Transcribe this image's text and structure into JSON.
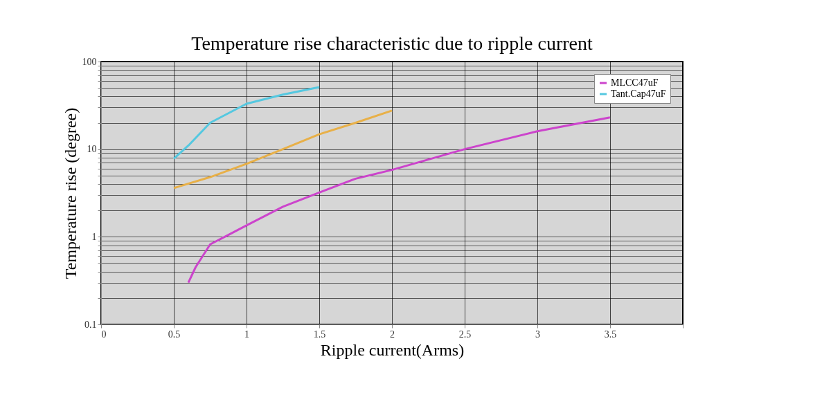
{
  "chart_data": {
    "type": "line",
    "title": "Temperature rise characteristic due to ripple current",
    "xlabel": "Ripple current(Arms)",
    "ylabel": "Temperature rise (degree)",
    "log": "y",
    "grid": true,
    "legend": "top right",
    "marker": "none",
    "line_style": "solid",
    "xlim": [
      0,
      4
    ],
    "xticks": [
      0,
      0.5,
      1,
      1.5,
      2,
      2.5,
      3,
      3.5,
      {
        "value": 4,
        "label": null
      }
    ],
    "ylim": [
      0.1,
      100
    ],
    "yticks": [
      0.1,
      {
        "value": 0.2,
        "label": null
      },
      {
        "value": 0.3,
        "label": null
      },
      {
        "value": 0.4,
        "label": null
      },
      {
        "value": 0.5,
        "label": null
      },
      {
        "value": 0.6,
        "label": null
      },
      {
        "value": 0.7,
        "label": null
      },
      {
        "value": 0.8,
        "label": null
      },
      {
        "value": 0.9,
        "label": null
      },
      1,
      {
        "value": 2,
        "label": null
      },
      {
        "value": 3,
        "label": null
      },
      {
        "value": 4,
        "label": null
      },
      {
        "value": 5,
        "label": null
      },
      {
        "value": 6,
        "label": null
      },
      {
        "value": 7,
        "label": null
      },
      {
        "value": 8,
        "label": null
      },
      {
        "value": 9,
        "label": null
      },
      10,
      {
        "value": 20,
        "label": null
      },
      {
        "value": 30,
        "label": null
      },
      {
        "value": 40,
        "label": null
      },
      {
        "value": 50,
        "label": null
      },
      {
        "value": 60,
        "label": null
      },
      {
        "value": 70,
        "label": null
      },
      {
        "value": 80,
        "label": null
      },
      {
        "value": 90,
        "label": null
      },
      100
    ],
    "series": [
      {
        "name": "MLCC47uF",
        "color": "#cc44cc",
        "x": [
          0.6,
          0.65,
          0.75,
          0.85,
          1,
          1.25,
          1.5,
          1.75,
          2,
          2.5,
          3,
          3.5
        ],
        "values": [
          0.3,
          0.45,
          0.82,
          1.0,
          1.35,
          2.2,
          3.2,
          4.6,
          5.8,
          10,
          16,
          23
        ]
      },
      {
        "name": "Tant.Cap47uF",
        "color": "#55c8e0",
        "x": [
          0.5,
          0.6,
          0.75,
          0.9,
          1,
          1.25,
          1.5
        ],
        "values": [
          7.8,
          11,
          20,
          27,
          33,
          42,
          51
        ]
      },
      {
        "color": "#e8b048",
        "x": [
          0.5,
          0.75,
          1,
          1.25,
          1.5,
          1.75,
          2
        ],
        "values": [
          3.6,
          4.8,
          6.8,
          10,
          14.8,
          20,
          27.6
        ]
      }
    ]
  }
}
